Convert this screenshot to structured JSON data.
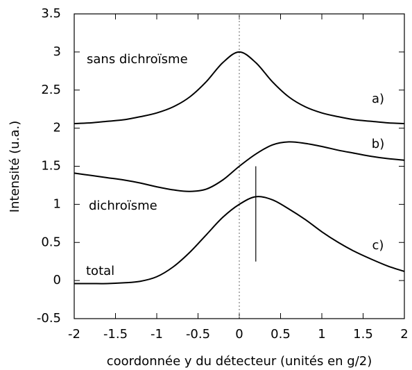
{
  "chart_data": {
    "type": "line",
    "xlabel": "coordonnée y du détecteur (unités en g/2)",
    "ylabel": "Intensité (u.a.)",
    "x": [
      -2,
      -1.8,
      -1.6,
      -1.4,
      -1.2,
      -1,
      -0.8,
      -0.6,
      -0.4,
      -0.2,
      0,
      0.2,
      0.4,
      0.6,
      0.8,
      1,
      1.2,
      1.4,
      1.6,
      1.8,
      2
    ],
    "series": [
      {
        "name": "a)",
        "color": "#000000",
        "values": [
          2.06,
          2.07,
          2.09,
          2.11,
          2.15,
          2.2,
          2.28,
          2.41,
          2.61,
          2.86,
          3.0,
          2.86,
          2.61,
          2.41,
          2.28,
          2.2,
          2.15,
          2.11,
          2.09,
          2.07,
          2.06
        ]
      },
      {
        "name": "b)",
        "color": "#000000",
        "values": [
          1.41,
          1.38,
          1.35,
          1.32,
          1.28,
          1.23,
          1.19,
          1.17,
          1.2,
          1.32,
          1.5,
          1.66,
          1.78,
          1.82,
          1.8,
          1.76,
          1.71,
          1.67,
          1.63,
          1.6,
          1.58
        ]
      },
      {
        "name": "c)",
        "color": "#000000",
        "values": [
          -0.04,
          -0.04,
          -0.04,
          -0.03,
          -0.01,
          0.05,
          0.18,
          0.37,
          0.6,
          0.83,
          1.0,
          1.1,
          1.06,
          0.94,
          0.8,
          0.64,
          0.5,
          0.38,
          0.28,
          0.19,
          0.12
        ]
      }
    ],
    "annotations": [
      "sans dichroïsme",
      "dichroïsme",
      "total"
    ],
    "vline": {
      "x": 0.2,
      "y": [
        0.25,
        1.5
      ]
    },
    "ref_x": 0,
    "xlim": [
      -2,
      2
    ],
    "xticks": [
      -2,
      -1.5,
      -1,
      -0.5,
      0,
      0.5,
      1,
      1.5,
      2
    ],
    "ylim": [
      -0.5,
      3.5
    ],
    "yticks": [
      -0.5,
      0,
      0.5,
      1,
      1.5,
      2,
      2.5,
      3,
      3.5
    ],
    "grid": false
  }
}
